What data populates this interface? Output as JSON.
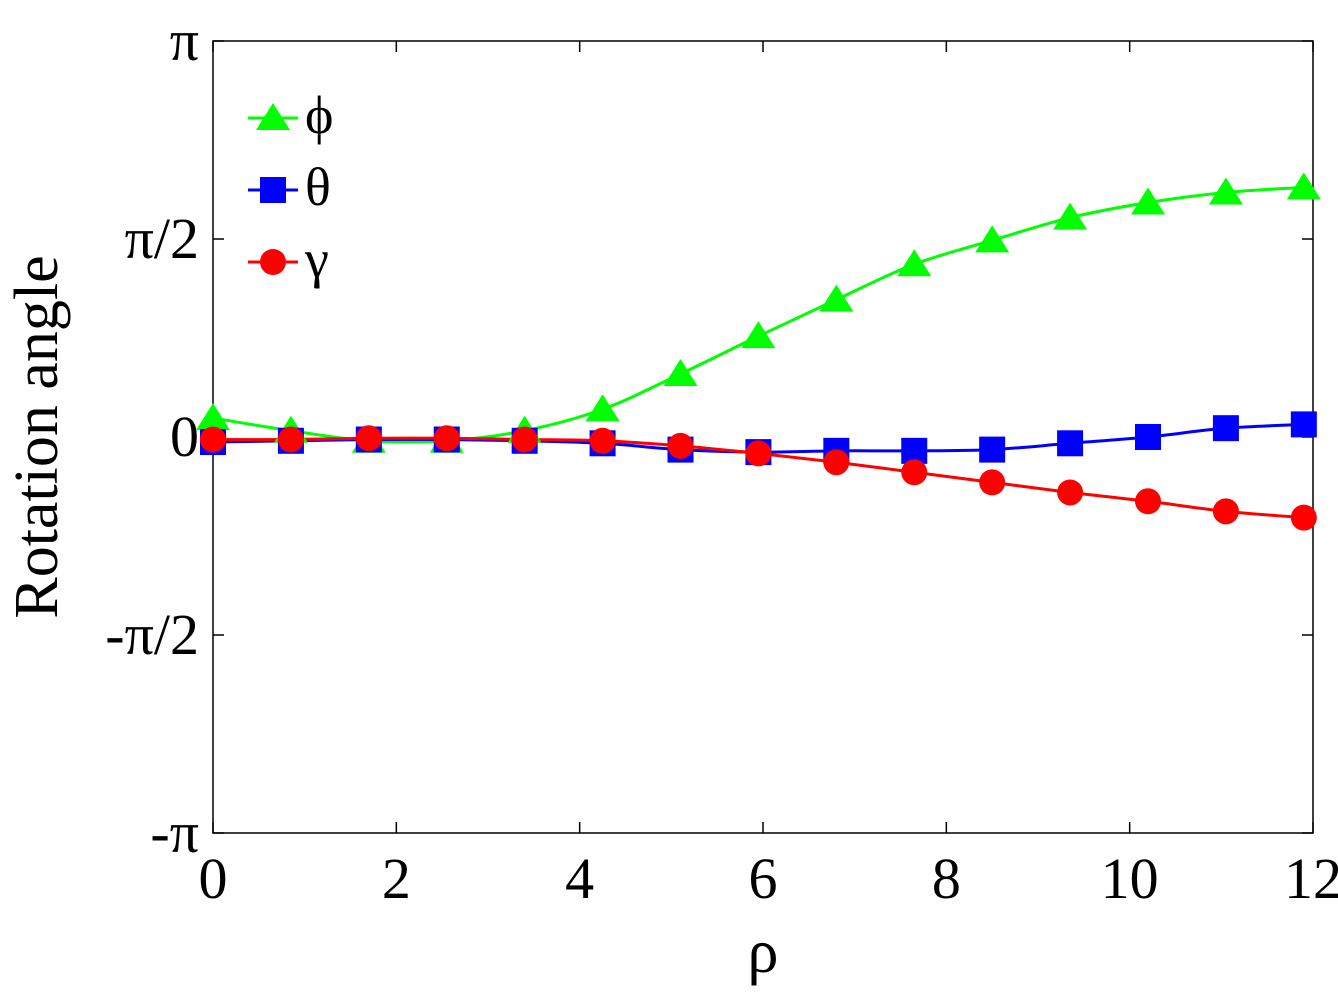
{
  "chart_data": {
    "type": "line",
    "xlabel": "ρ",
    "ylabel": "Rotation angle",
    "xlim": [
      0,
      12
    ],
    "ylim": [
      -3.14159,
      3.14159
    ],
    "x_ticks": [
      {
        "value": 0,
        "label": "0"
      },
      {
        "value": 2,
        "label": "2"
      },
      {
        "value": 4,
        "label": "4"
      },
      {
        "value": 6,
        "label": "6"
      },
      {
        "value": 8,
        "label": "8"
      },
      {
        "value": 10,
        "label": "10"
      },
      {
        "value": 12,
        "label": "12"
      }
    ],
    "y_ticks": [
      {
        "value": 3.14159,
        "label": "π"
      },
      {
        "value": 1.5708,
        "label": "π/2"
      },
      {
        "value": 0,
        "label": "0"
      },
      {
        "value": -1.5708,
        "label": "-π/2"
      },
      {
        "value": -3.14159,
        "label": "-π"
      }
    ],
    "grid": false,
    "legend_position": "top-left",
    "x": [
      0,
      0.85,
      1.7,
      2.55,
      3.4,
      4.25,
      5.1,
      5.95,
      6.8,
      7.65,
      8.5,
      9.35,
      10.2,
      11.05,
      11.9
    ],
    "series": [
      {
        "name": "ϕ",
        "color": "#00ff00",
        "marker": "triangle",
        "values": [
          0.15,
          0.05,
          -0.03,
          -0.03,
          0.05,
          0.22,
          0.5,
          0.8,
          1.09,
          1.37,
          1.56,
          1.74,
          1.86,
          1.94,
          1.98
        ]
      },
      {
        "name": "θ",
        "color": "#0000ff",
        "marker": "square",
        "values": [
          -0.04,
          -0.03,
          -0.02,
          -0.02,
          -0.03,
          -0.05,
          -0.1,
          -0.12,
          -0.11,
          -0.11,
          -0.1,
          -0.05,
          0.0,
          0.07,
          0.1
        ]
      },
      {
        "name": "γ",
        "color": "#ff0000",
        "marker": "circle",
        "values": [
          -0.02,
          -0.02,
          -0.01,
          -0.01,
          -0.02,
          -0.03,
          -0.07,
          -0.13,
          -0.2,
          -0.28,
          -0.36,
          -0.44,
          -0.51,
          -0.59,
          -0.64
        ]
      }
    ]
  }
}
